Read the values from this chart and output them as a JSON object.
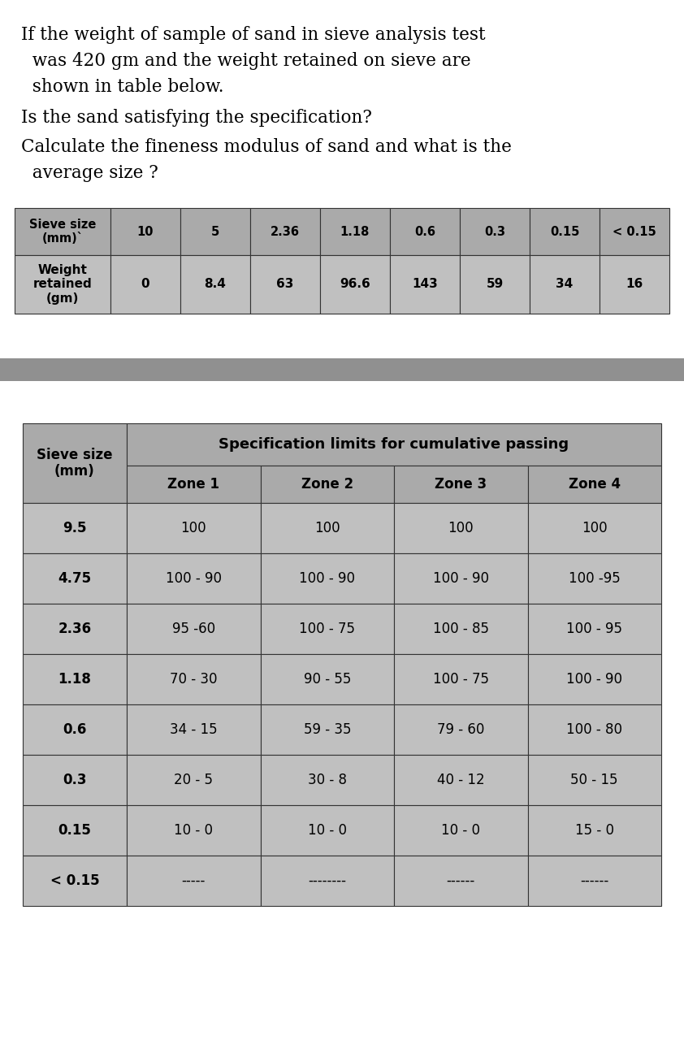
{
  "p1_lines": [
    "If the weight of sample of sand in sieve analysis test",
    "  was 420 gm and the weight retained on sieve are",
    "  shown in table below."
  ],
  "p2": "Is the sand satisfying the specification?",
  "p3_lines": [
    "Calculate the fineness modulus of sand and what is the",
    "  average size ?"
  ],
  "table1_row1": [
    "Sieve size\n(mm)`",
    "10",
    "5",
    "2.36",
    "1.18",
    "0.6",
    "0.3",
    "0.15",
    "< 0.15"
  ],
  "table1_row2": [
    "Weight\nretained\n(gm)",
    "0",
    "8.4",
    "63",
    "96.6",
    "143",
    "59",
    "34",
    "16"
  ],
  "table2_span_header": "Specification limits for cumulative passing",
  "table2_col1_header": "Sieve size\n(mm)",
  "table2_zone_headers": [
    "Zone 1",
    "Zone 2",
    "Zone 3",
    "Zone 4"
  ],
  "table2_rows": [
    [
      "9.5",
      "100",
      "100",
      "100",
      "100"
    ],
    [
      "4.75",
      "100 - 90",
      "100 - 90",
      "100 - 90",
      "100 -95"
    ],
    [
      "2.36",
      "95 -60",
      "100 - 75",
      "100 - 85",
      "100 - 95"
    ],
    [
      "1.18",
      "70 - 30",
      "90 - 55",
      "100 - 75",
      "100 - 90"
    ],
    [
      "0.6",
      "34 - 15",
      "59 - 35",
      "79 - 60",
      "100 - 80"
    ],
    [
      "0.3",
      "20 - 5",
      "30 - 8",
      "40 - 12",
      "50 - 15"
    ],
    [
      "0.15",
      "10 - 0",
      "10 - 0",
      "10 - 0",
      "15 - 0"
    ],
    [
      "< 0.15",
      "-----",
      "--------",
      "------",
      "------"
    ]
  ],
  "bg_color": "#ffffff",
  "header_color": "#aaaaaa",
  "row_color": "#c0c0c0",
  "sep_color": "#909090",
  "text_color": "#000000",
  "fig_width": 8.42,
  "fig_height": 12.8,
  "dpi": 100
}
